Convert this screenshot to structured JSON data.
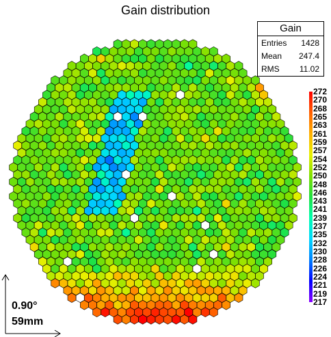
{
  "title": "Gain distribution",
  "stats": {
    "header": "Gain",
    "rows": [
      {
        "label": "Entries",
        "value": "1428"
      },
      {
        "label": "Mean",
        "value": "247.4"
      },
      {
        "label": "RMS",
        "value": "11.02"
      }
    ]
  },
  "indicator": {
    "angle": "0.90°",
    "length": "59mm"
  },
  "chart_data": {
    "type": "heatmap",
    "title": "Gain distribution",
    "description_layout": "hexagonal cells within a circular camera footprint",
    "entries": 1428,
    "mean": 247.4,
    "rms": 11.02,
    "zlim": [
      217,
      272
    ],
    "colorbar_ticks": [
      272,
      270,
      268,
      265,
      263,
      261,
      259,
      257,
      254,
      252,
      250,
      248,
      246,
      243,
      241,
      239,
      237,
      235,
      232,
      230,
      228,
      226,
      224,
      221,
      219,
      217
    ],
    "empty_cell_color": "#ffffff"
  },
  "colors": {
    "palette_stops": [
      "#8a00ff",
      "#0000ff",
      "#0080ff",
      "#00d8ff",
      "#00ffb0",
      "#20e040",
      "#80e000",
      "#e8f000",
      "#ffb000",
      "#ff6000",
      "#ff0000"
    ]
  }
}
